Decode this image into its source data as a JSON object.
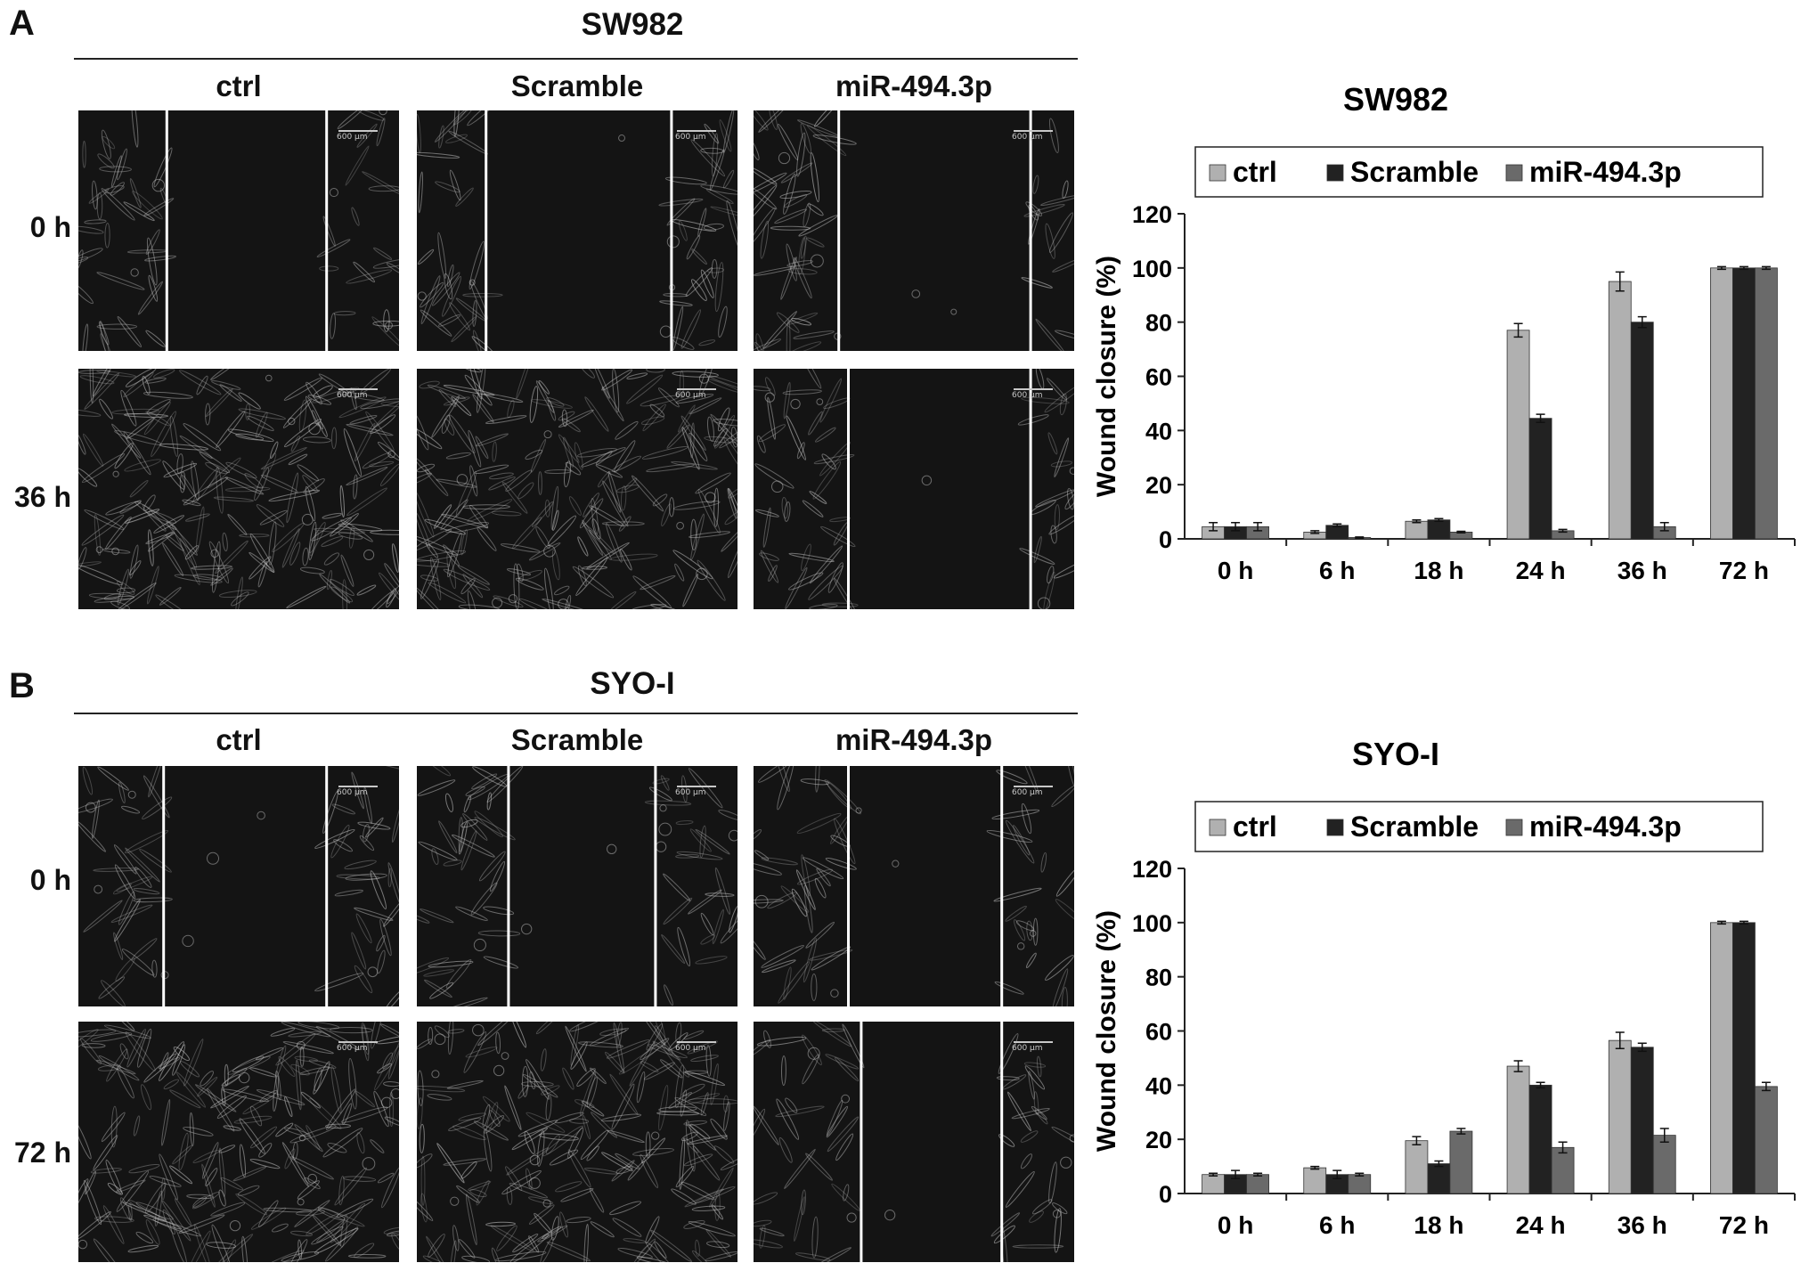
{
  "panel_a": {
    "letter": "A",
    "title": "SW982",
    "conditions": [
      "ctrl",
      "Scramble",
      "miR-494.3p"
    ],
    "rows": [
      "0 h",
      "36 h"
    ]
  },
  "panel_b": {
    "letter": "B",
    "title": "SYO-I",
    "conditions": [
      "ctrl",
      "Scramble",
      "miR-494.3p"
    ],
    "rows": [
      "0 h",
      "72 h"
    ]
  },
  "scale_label": "600 µm",
  "colors": {
    "ctrl": "#b0b0b0",
    "scramble": "#222222",
    "mir": "#6a6a6a",
    "micro_bg": "#141414"
  },
  "chart_data": [
    {
      "type": "bar",
      "title": "SW982",
      "xlabel": "",
      "ylabel": "Wound closure (%)",
      "ylim": [
        0,
        120
      ],
      "yticks": [
        0,
        20,
        40,
        60,
        80,
        100,
        120
      ],
      "legend_position": "top",
      "categories": [
        "0 h",
        "6 h",
        "18 h",
        "24 h",
        "36 h",
        "72 h"
      ],
      "series": [
        {
          "name": "ctrl",
          "values": [
            4.5,
            2.5,
            6.5,
            77,
            95,
            100
          ],
          "errors": [
            1.5,
            0.5,
            0.5,
            2.5,
            3.5,
            0.5
          ]
        },
        {
          "name": "Scramble",
          "values": [
            4.5,
            5,
            7,
            44.5,
            80,
            100
          ],
          "errors": [
            1.5,
            0.5,
            0.5,
            1.5,
            2,
            0.5
          ]
        },
        {
          "name": "miR-494.3p",
          "values": [
            4.5,
            0.5,
            2.5,
            3,
            4.5,
            100
          ],
          "errors": [
            1.5,
            0.2,
            0.3,
            0.5,
            1.5,
            0.5
          ]
        }
      ]
    },
    {
      "type": "bar",
      "title": "SYO-I",
      "xlabel": "",
      "ylabel": "Wound closure (%)",
      "ylim": [
        0,
        120
      ],
      "yticks": [
        0,
        20,
        40,
        60,
        80,
        100,
        120
      ],
      "legend_position": "top",
      "categories": [
        "0 h",
        "6 h",
        "18 h",
        "24 h",
        "36 h",
        "72 h"
      ],
      "series": [
        {
          "name": "ctrl",
          "values": [
            7,
            9.5,
            19.5,
            47,
            56.5,
            100
          ],
          "errors": [
            0.5,
            0.5,
            1.5,
            2,
            3,
            0.5
          ]
        },
        {
          "name": "Scramble",
          "values": [
            7,
            7,
            11,
            40,
            54,
            100
          ],
          "errors": [
            1.5,
            1.5,
            1,
            1,
            1.5,
            0.5
          ]
        },
        {
          "name": "miR-494.3p",
          "values": [
            7,
            7,
            23,
            17,
            21.5,
            39.5
          ],
          "errors": [
            0.5,
            0.5,
            1,
            2,
            2.5,
            1.5
          ]
        }
      ]
    }
  ]
}
